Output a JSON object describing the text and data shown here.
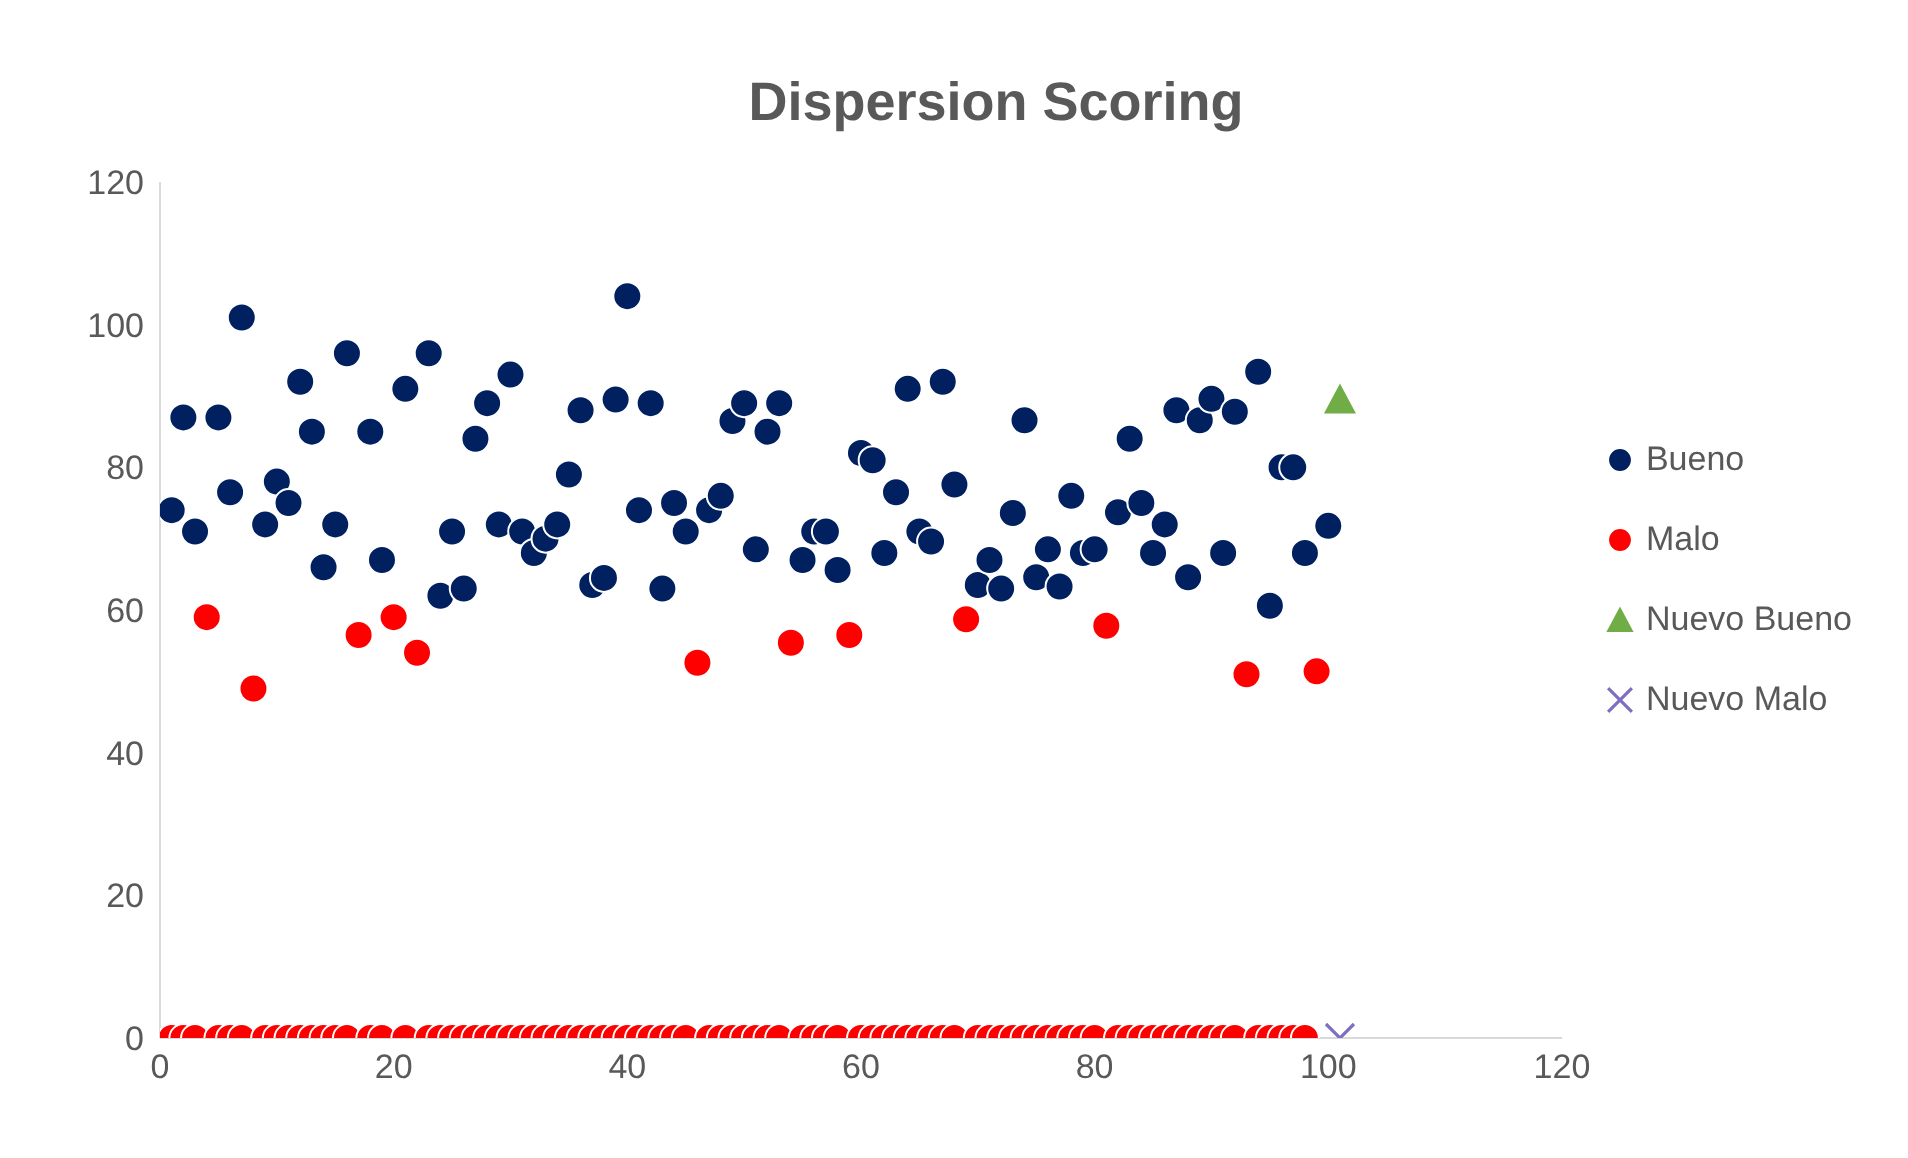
{
  "chart_data": {
    "type": "scatter",
    "title": "Dispersion Scoring",
    "xlim": [
      0,
      120
    ],
    "xticks": [
      0,
      20,
      40,
      60,
      80,
      100,
      120
    ],
    "ylim": [
      0,
      120
    ],
    "yticks": [
      0,
      20,
      40,
      60,
      80,
      100,
      120
    ],
    "grid": false,
    "legend": "right",
    "series": [
      {
        "name": "Bueno",
        "color": "#002060",
        "marker": "circle",
        "x": [
          1,
          2,
          3,
          5,
          6,
          7,
          9,
          10,
          11,
          12,
          13,
          14,
          15,
          16,
          18,
          19,
          21,
          23,
          24,
          25,
          26,
          27,
          28,
          29,
          30,
          31,
          32,
          33,
          34,
          35,
          36,
          37,
          38,
          39,
          40,
          41,
          42,
          43,
          44,
          45,
          47,
          48,
          49,
          50,
          51,
          52,
          53,
          55,
          56,
          57,
          58,
          60,
          61,
          62,
          63,
          64,
          65,
          66,
          67,
          68,
          70,
          71,
          72,
          73,
          74,
          75,
          76,
          77,
          78,
          79,
          80,
          82,
          83,
          84,
          85,
          86,
          87,
          88,
          89,
          90,
          91,
          92,
          94,
          95,
          96,
          97,
          98,
          100
        ],
        "values": [
          74,
          87,
          71,
          87,
          76.5,
          101,
          72,
          78,
          75,
          92,
          85,
          66,
          72,
          96,
          85,
          67,
          91,
          96,
          62,
          71,
          63,
          84,
          89,
          72,
          93,
          71,
          68,
          70,
          72,
          79,
          88,
          63.5,
          64.5,
          89.5,
          104,
          74,
          89,
          63,
          75,
          71,
          74,
          76,
          86.5,
          89,
          68.5,
          85,
          89,
          67,
          71,
          71,
          65.6,
          82,
          81,
          68,
          76.5,
          91,
          71,
          69.6,
          92,
          77.6,
          63.5,
          67,
          63,
          73.6,
          86.6,
          64.6,
          68.5,
          63.3,
          76,
          68,
          68.5,
          73.7,
          84,
          75,
          68,
          72,
          88,
          64.6,
          86.6,
          89.6,
          68,
          87.8,
          93.4,
          60.6,
          80,
          80,
          68,
          71.8
        ]
      },
      {
        "name": "Malo",
        "color": "#ff0000",
        "marker": "circle",
        "x": [
          1,
          2,
          3,
          4,
          5,
          6,
          7,
          8,
          9,
          10,
          11,
          12,
          13,
          14,
          15,
          16,
          17,
          18,
          19,
          20,
          21,
          22,
          23,
          24,
          25,
          26,
          27,
          28,
          29,
          30,
          31,
          32,
          33,
          34,
          35,
          36,
          37,
          38,
          39,
          40,
          41,
          42,
          43,
          44,
          45,
          46,
          47,
          48,
          49,
          50,
          51,
          52,
          53,
          54,
          55,
          56,
          57,
          58,
          59,
          60,
          61,
          62,
          63,
          64,
          65,
          66,
          67,
          68,
          69,
          70,
          71,
          72,
          73,
          74,
          75,
          76,
          77,
          78,
          79,
          80,
          81,
          82,
          83,
          84,
          85,
          86,
          87,
          88,
          89,
          90,
          91,
          92,
          93,
          94,
          95,
          96,
          97,
          98,
          99
        ],
        "values": [
          0,
          0,
          0,
          59,
          0,
          0,
          0,
          49,
          0,
          0,
          0,
          0,
          0,
          0,
          0,
          0,
          56.5,
          0,
          0,
          59,
          0,
          54,
          0,
          0,
          0,
          0,
          0,
          0,
          0,
          0,
          0,
          0,
          0,
          0,
          0,
          0,
          0,
          0,
          0,
          0,
          0,
          0,
          0,
          0,
          0,
          52.6,
          0,
          0,
          0,
          0,
          0,
          0,
          0,
          55.4,
          0,
          0,
          0,
          0,
          56.5,
          0,
          0,
          0,
          0,
          0,
          0,
          0,
          0,
          0,
          58.7,
          0,
          0,
          0,
          0,
          0,
          0,
          0,
          0,
          0,
          0,
          0,
          57.8,
          0,
          0,
          0,
          0,
          0,
          0,
          0,
          0,
          0,
          0,
          0,
          51,
          0,
          0,
          0,
          0,
          0,
          51.4
        ]
      },
      {
        "name": "Nuevo Bueno",
        "color": "#70ad47",
        "marker": "triangle",
        "x": [
          101
        ],
        "values": [
          89.5
        ]
      },
      {
        "name": "Nuevo Malo",
        "color": "#7f6fc0",
        "marker": "cross",
        "x": [
          101
        ],
        "values": [
          0
        ]
      }
    ]
  }
}
